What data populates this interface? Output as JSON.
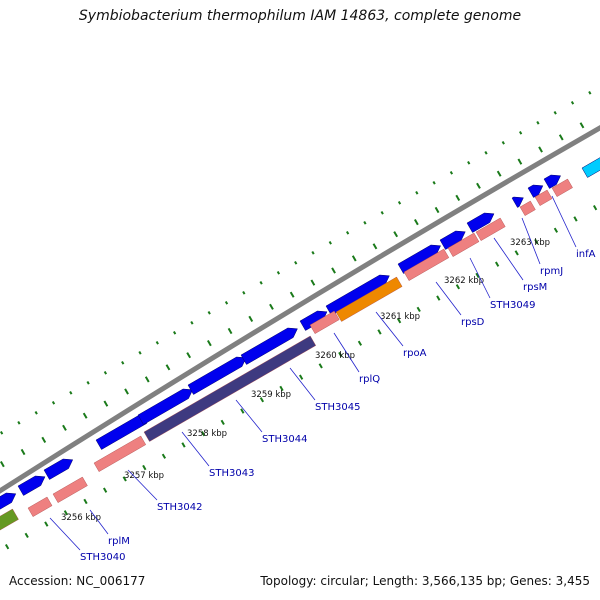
{
  "title": "Symbiobacterium thermophilum IAM 14863, complete genome",
  "footer": {
    "accession": "Accession: NC_006177",
    "summary": "Topology: circular; Length: 3,566,135 bp; Genes: 3,455"
  },
  "colors": {
    "forward_gene": "#0000ee",
    "reverse_gene": "#ee8080",
    "special_gene": "#ee8800",
    "dark_gene": "#3e3a80",
    "cyan_gene": "#00ccff",
    "olive_gene": "#669922",
    "backbone": "#808080",
    "tick": "#1a7a1a",
    "label": "#0000aa"
  },
  "ticks": [
    {
      "label": "3256 kbp"
    },
    {
      "label": "3257 kbp"
    },
    {
      "label": "3258 kbp"
    },
    {
      "label": "3259 kbp"
    },
    {
      "label": "3260 kbp"
    },
    {
      "label": "3261 kbp"
    },
    {
      "label": "3262 kbp"
    },
    {
      "label": "3263 kbp"
    }
  ],
  "gene_labels": [
    {
      "name": "STH3040"
    },
    {
      "name": "rplM"
    },
    {
      "name": "STH3042"
    },
    {
      "name": "STH3043"
    },
    {
      "name": "STH3044"
    },
    {
      "name": "STH3045"
    },
    {
      "name": "rplQ"
    },
    {
      "name": "rpoA"
    },
    {
      "name": "rpsD"
    },
    {
      "name": "STH3049"
    },
    {
      "name": "rpsM"
    },
    {
      "name": "rpmJ"
    },
    {
      "name": "infA"
    }
  ]
}
